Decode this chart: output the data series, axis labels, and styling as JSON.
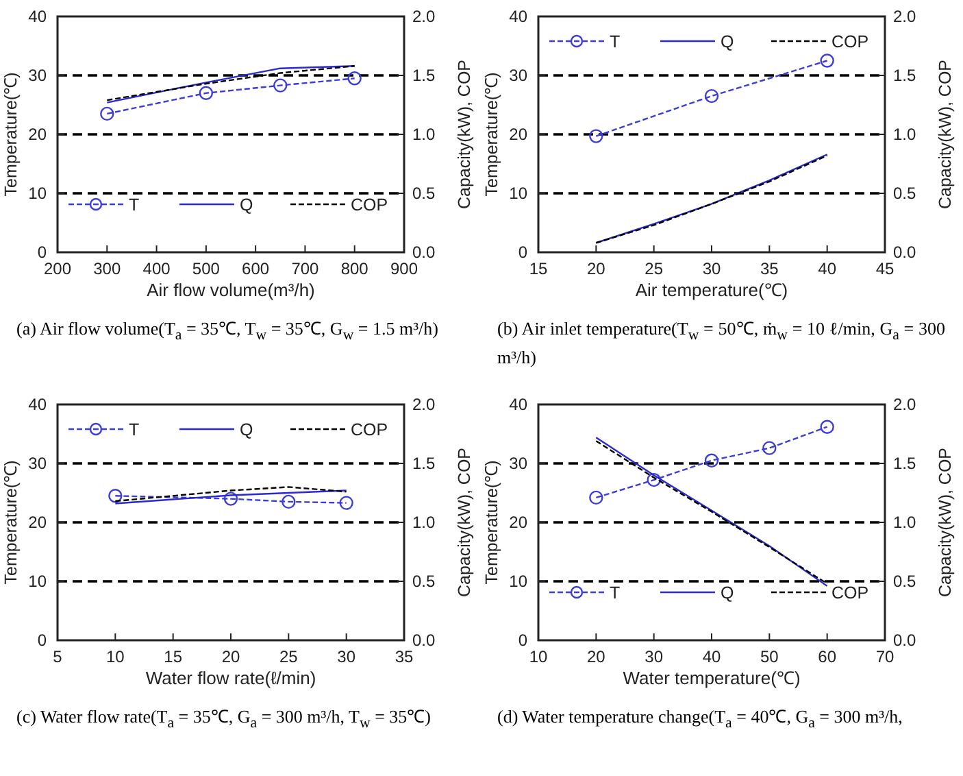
{
  "chart_data": [
    {
      "type": "line",
      "xlabel": "Air flow volume(m³/h)",
      "ylabel": "Temperature(℃)",
      "y2label": "Capacity(kW), COP",
      "x": [
        300,
        500,
        650,
        800
      ],
      "xlim": [
        200,
        900
      ],
      "xticks": [
        200,
        300,
        400,
        500,
        600,
        700,
        800,
        900
      ],
      "ylim": [
        0,
        40
      ],
      "yticks": [
        0,
        10,
        20,
        30,
        40
      ],
      "y2lim": [
        0,
        2.0
      ],
      "y2ticks": [
        {
          "value": 0,
          "label": "0.0"
        },
        {
          "value": 0.5,
          "label": "0.5"
        },
        {
          "value": 1,
          "label": "1.0"
        },
        {
          "value": 1.5,
          "label": "1.5"
        },
        {
          "value": 2,
          "label": "2.0"
        }
      ],
      "grid": "y",
      "legend": "bottom",
      "series": [
        {
          "name": "T",
          "color": "#3c3cd8",
          "values": [
            23.5,
            27,
            28.3,
            29.5
          ],
          "marker": "circle",
          "line_style": "dashed"
        },
        {
          "name": "Q",
          "color": "#2a2ad0",
          "values": [
            1.27,
            1.44,
            1.56,
            1.58
          ],
          "axis": "y2",
          "marker": "none",
          "line_style": "solid"
        },
        {
          "name": "COP",
          "color": "#000000",
          "values": [
            1.29,
            1.43,
            1.52,
            1.58
          ],
          "axis": "y2",
          "marker": "none",
          "line_style": "dashed"
        }
      ],
      "annotations": [
        "(a) Air flow volume(T$_{a}$ = 35℃, T$_{w}$ = 35℃, G$_{w}$ = 1.5 m³/h)"
      ]
    },
    {
      "type": "line",
      "xlabel": "Air temperature(℃)",
      "ylabel": "Temperature(℃)",
      "y2label": "Capacity(kW), COP",
      "x": [
        20,
        25,
        30,
        35,
        40
      ],
      "xlim": [
        15,
        45
      ],
      "xticks": [
        15,
        20,
        25,
        30,
        35,
        40,
        45
      ],
      "ylim": [
        0,
        40
      ],
      "yticks": [
        0,
        10,
        20,
        30,
        40
      ],
      "y2lim": [
        0,
        2.0
      ],
      "y2ticks": [
        {
          "value": 0,
          "label": "0.0"
        },
        {
          "value": 0.5,
          "label": "0.5"
        },
        {
          "value": 1,
          "label": "1.0"
        },
        {
          "value": 1.5,
          "label": "1.5"
        },
        {
          "value": 2,
          "label": "2.0"
        }
      ],
      "grid": "y",
      "legend": "top",
      "series": [
        {
          "name": "T",
          "color": "#3c3cd8",
          "x": [
            20,
            30,
            40
          ],
          "values": [
            19.7,
            26.5,
            32.5
          ],
          "marker": "circle",
          "line_style": "dashed"
        },
        {
          "name": "Q",
          "color": "#2a2ad0",
          "values": [
            0.08,
            0.24,
            0.41,
            0.61,
            0.83
          ],
          "axis": "y2",
          "marker": "none",
          "line_style": "solid"
        },
        {
          "name": "COP",
          "color": "#000000",
          "values": [
            0.08,
            0.23,
            0.41,
            0.6,
            0.82
          ],
          "axis": "y2",
          "marker": "none",
          "line_style": "dashed"
        }
      ],
      "annotations": [
        "(b) Air inlet temperature(T$_{w}$ = 50℃, ṁ$_{w}$ = 10 ℓ/min, G$_{a}$ = 300 m³/h)"
      ]
    },
    {
      "type": "line",
      "xlabel": "Water flow rate(ℓ/min)",
      "ylabel": "Temperature(℃)",
      "y2label": "Capacity(kW), COP",
      "x": [
        10,
        20,
        25,
        30
      ],
      "xlim": [
        5,
        35
      ],
      "xticks": [
        5,
        10,
        15,
        20,
        25,
        30,
        35
      ],
      "ylim": [
        0,
        40
      ],
      "yticks": [
        0,
        10,
        20,
        30,
        40
      ],
      "y2lim": [
        0,
        2.0
      ],
      "y2ticks": [
        {
          "value": 0,
          "label": "0.0"
        },
        {
          "value": 0.5,
          "label": "0.5"
        },
        {
          "value": 1,
          "label": "1.0"
        },
        {
          "value": 1.5,
          "label": "1.5"
        },
        {
          "value": 2,
          "label": "2.0"
        }
      ],
      "grid": "y",
      "legend": "top",
      "series": [
        {
          "name": "T",
          "color": "#3c3cd8",
          "values": [
            24.5,
            24,
            23.5,
            23.3
          ],
          "marker": "circle",
          "line_style": "dashed"
        },
        {
          "name": "Q",
          "color": "#2a2ad0",
          "values": [
            1.16,
            1.23,
            1.25,
            1.27
          ],
          "axis": "y2",
          "marker": "none",
          "line_style": "solid"
        },
        {
          "name": "COP",
          "color": "#000000",
          "values": [
            1.18,
            1.27,
            1.3,
            1.26
          ],
          "axis": "y2",
          "marker": "none",
          "line_style": "dashed"
        }
      ],
      "annotations": [
        "(c) Water flow rate(T$_{a}$ = 35℃, G$_{a}$ = 300 m³/h, T$_{w}$ = 35℃)"
      ]
    },
    {
      "type": "line",
      "xlabel": "Water temperature(℃)",
      "ylabel": "Temperature(℃)",
      "y2label": "Capacity(kW), COP",
      "x": [
        20,
        30,
        40,
        50,
        60
      ],
      "xlim": [
        10,
        70
      ],
      "xticks": [
        10,
        20,
        30,
        40,
        50,
        60,
        70
      ],
      "ylim": [
        0,
        40
      ],
      "yticks": [
        0,
        10,
        20,
        30,
        40
      ],
      "y2lim": [
        0,
        2.0
      ],
      "y2ticks": [
        {
          "value": 0,
          "label": "0.0"
        },
        {
          "value": 0.5,
          "label": "0.5"
        },
        {
          "value": 1,
          "label": "1.0"
        },
        {
          "value": 1.5,
          "label": "1.5"
        },
        {
          "value": 2,
          "label": "2.0"
        }
      ],
      "grid": "y",
      "legend": "bottom",
      "series": [
        {
          "name": "T",
          "color": "#3c3cd8",
          "values": [
            24.2,
            27.2,
            30.5,
            32.6,
            36.2
          ],
          "marker": "circle",
          "line_style": "dashed"
        },
        {
          "name": "Q",
          "color": "#2a2ad0",
          "values": [
            1.72,
            1.4,
            1.1,
            0.8,
            0.46
          ],
          "axis": "y2",
          "marker": "none",
          "line_style": "solid"
        },
        {
          "name": "COP",
          "color": "#000000",
          "values": [
            1.69,
            1.38,
            1.09,
            0.79,
            0.48
          ],
          "axis": "y2",
          "marker": "none",
          "line_style": "dashed"
        }
      ],
      "annotations": [
        "(d) Water temperature change(T$_{a}$ = 40℃, G$_{a}$ = 300 m³/h,"
      ]
    }
  ]
}
